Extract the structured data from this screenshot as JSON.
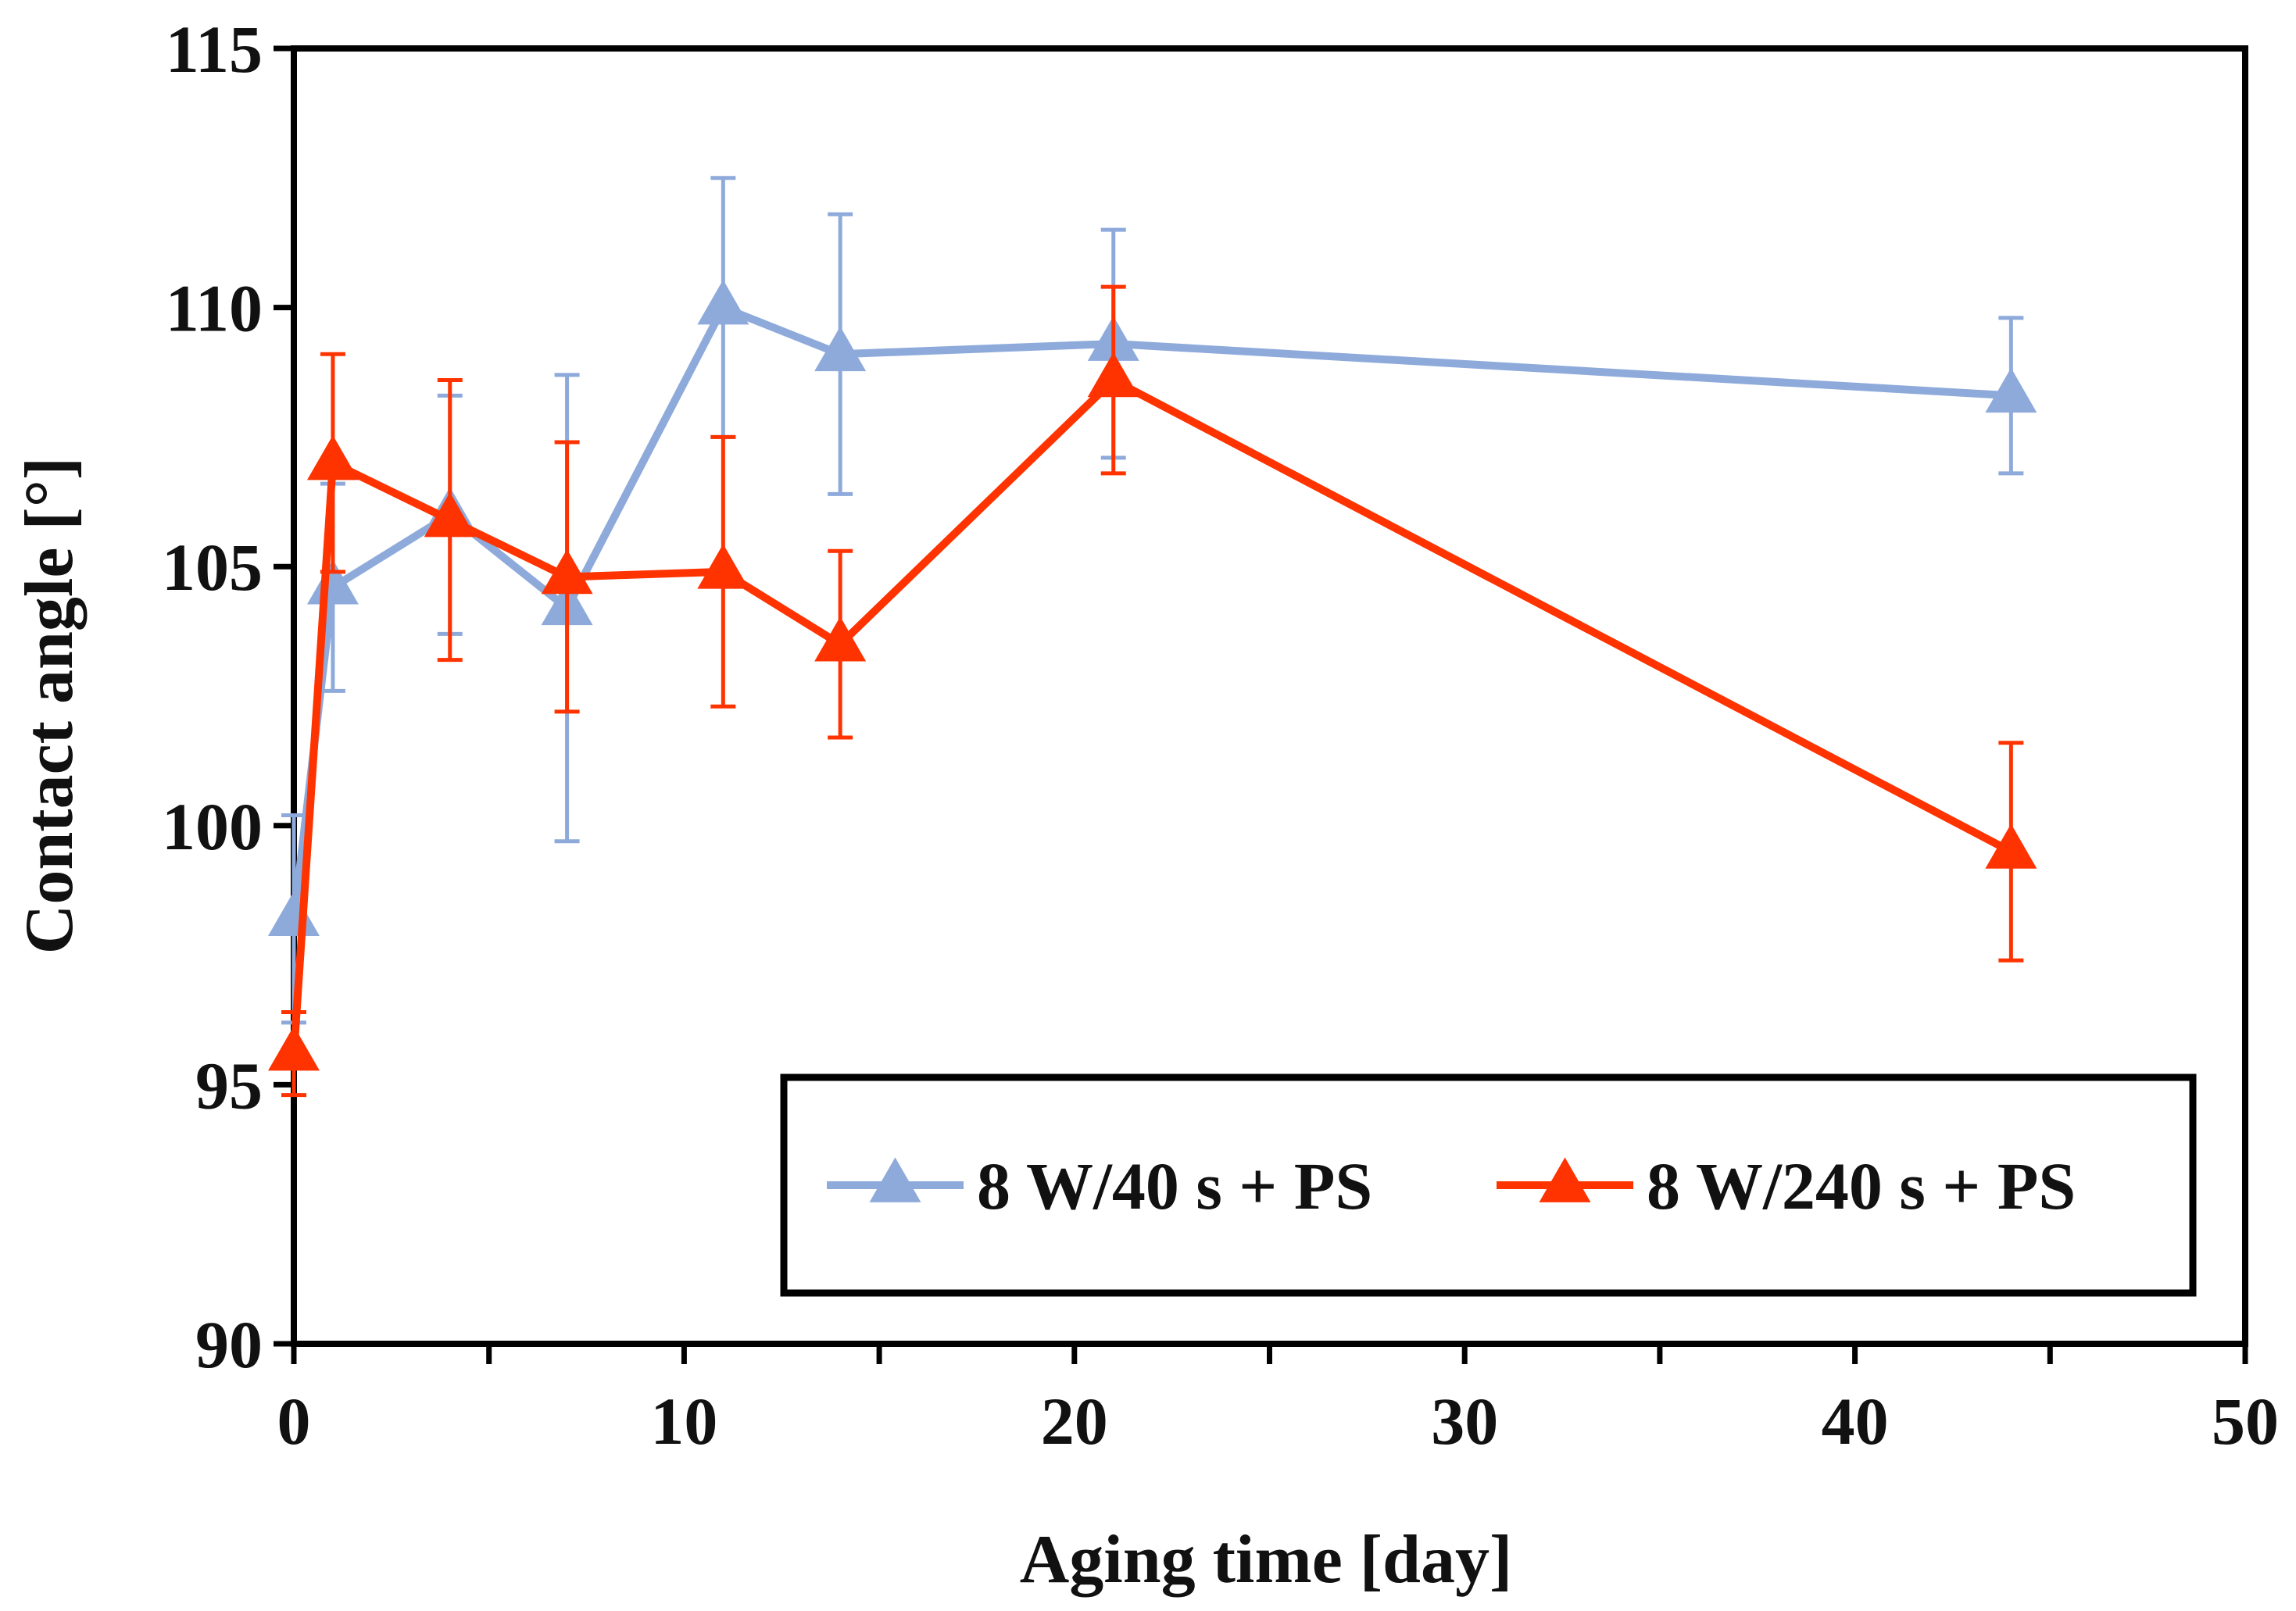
{
  "chart_data": {
    "type": "line",
    "title": "",
    "xlabel": "Aging time [day]",
    "ylabel": "Contact angle [°]",
    "xlim": [
      0,
      50
    ],
    "ylim": [
      90,
      115
    ],
    "xticks": [
      0,
      10,
      20,
      30,
      40,
      50
    ],
    "yticks": [
      90,
      95,
      100,
      105,
      110,
      115
    ],
    "xtick_labels": [
      "0",
      "10",
      "20",
      "30",
      "40",
      "50"
    ],
    "ytick_labels": [
      "90",
      "95",
      "100",
      "105",
      "110",
      "115"
    ],
    "grid": false,
    "legend_position": "bottom-right",
    "series": [
      {
        "name": "8 W/40 s + PS",
        "color": "#8eaadb",
        "marker": "triangle",
        "x": [
          0,
          1,
          4,
          7,
          11,
          14,
          21,
          44
        ],
        "y": [
          98.2,
          104.6,
          106.0,
          104.2,
          110.0,
          109.1,
          109.3,
          108.3
        ],
        "error": [
          2.0,
          2.0,
          2.3,
          4.5,
          2.5,
          2.7,
          2.2,
          1.5
        ]
      },
      {
        "name": "8 W/240 s + PS",
        "color": "#ff3300",
        "marker": "triangle",
        "x": [
          0,
          1,
          4,
          7,
          11,
          14,
          21,
          44
        ],
        "y": [
          95.6,
          107.0,
          105.9,
          104.8,
          104.9,
          103.5,
          108.6,
          99.5
        ],
        "error": [
          0.8,
          2.1,
          2.7,
          2.6,
          2.6,
          1.8,
          1.8,
          2.1
        ]
      }
    ]
  }
}
